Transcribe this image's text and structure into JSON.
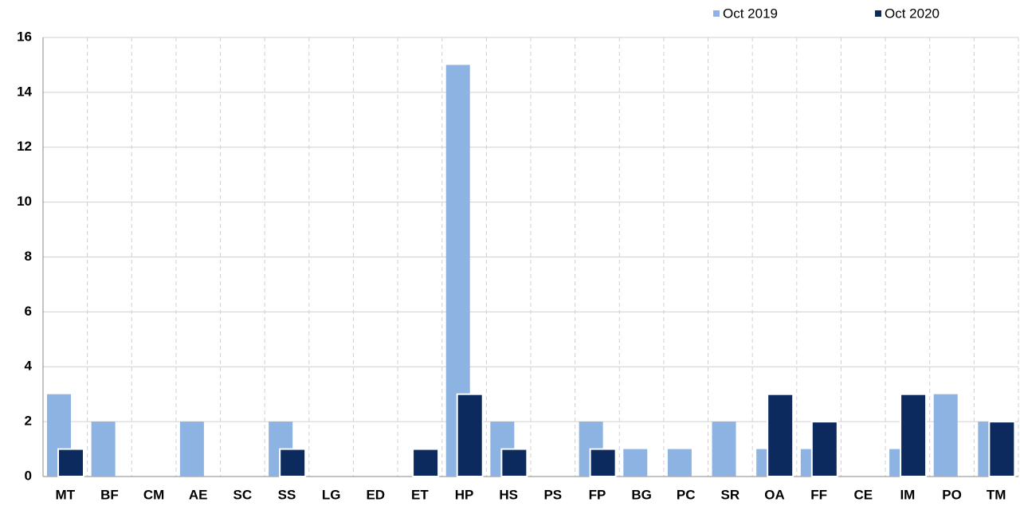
{
  "chart_data": {
    "type": "bar",
    "categories": [
      "MT",
      "BF",
      "CM",
      "AE",
      "SC",
      "SS",
      "LG",
      "ED",
      "ET",
      "HP",
      "HS",
      "PS",
      "FP",
      "BG",
      "PC",
      "SR",
      "OA",
      "FF",
      "CE",
      "IM",
      "PO",
      "TM"
    ],
    "series": [
      {
        "name": "Oct 2019",
        "color": "#8db3e2",
        "values": [
          3,
          2,
          0,
          2,
          0,
          2,
          0,
          0,
          0,
          15,
          2,
          0,
          2,
          1,
          1,
          2,
          1,
          1,
          0,
          1,
          3,
          2
        ]
      },
      {
        "name": "Oct 2020",
        "color": "#0c2a5e",
        "values": [
          1,
          0,
          0,
          0,
          0,
          1,
          0,
          0,
          1,
          3,
          1,
          0,
          1,
          0,
          0,
          0,
          3,
          2,
          0,
          3,
          0,
          2
        ]
      }
    ],
    "ylim": [
      0,
      16
    ],
    "yticks": [
      0,
      2,
      4,
      6,
      8,
      10,
      12,
      14,
      16
    ],
    "grid": true,
    "legend": "top-right"
  }
}
